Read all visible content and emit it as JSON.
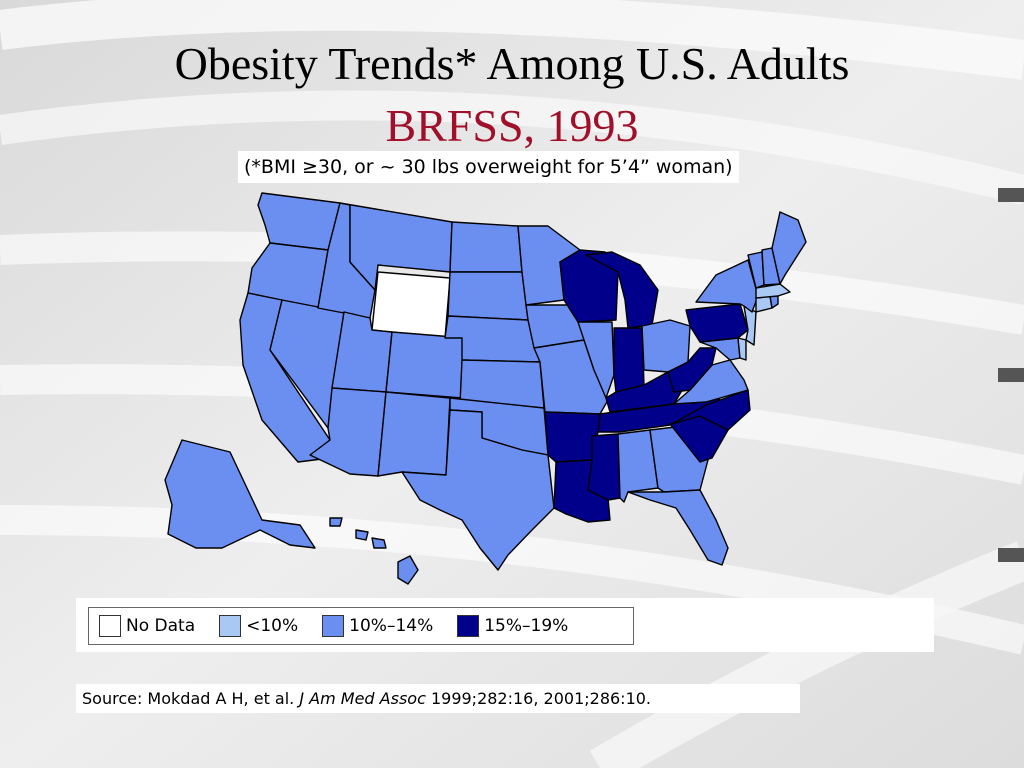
{
  "slide": {
    "title_line1": "Obesity Trends* Among U.S. Adults",
    "title_line2": "BRFSS, 1993",
    "footnote": "(*BMI ≥30, or ~ 30 lbs overweight for 5’4” woman)"
  },
  "legend": [
    {
      "label": "No Data",
      "color": "#ffffff"
    },
    {
      "label": "<10%",
      "color": "#a9c9f4"
    },
    {
      "label": "10%–14%",
      "color": "#6a8ff0"
    },
    {
      "label": "15%–19%",
      "color": "#00008a"
    }
  ],
  "source": {
    "prefix": "Source: Mokdad A H, et al. ",
    "journal": "J Am Med Assoc",
    "citation": " 1999;282:16, 2001;286:10."
  },
  "map": {
    "category_colors": {
      "no_data": "#ffffff",
      "lt10": "#a9c9f4",
      "10_14": "#6a8ff0",
      "15_19": "#00008a"
    },
    "states": {
      "WY": "no_data",
      "WI": "15_19",
      "MI": "15_19",
      "IN": "15_19",
      "KY": "15_19",
      "TN": "15_19",
      "WV": "15_19",
      "PA": "15_19",
      "NC": "15_19",
      "SC": "15_19",
      "AR": "15_19",
      "MS": "15_19",
      "LA": "15_19",
      "MA": "lt10",
      "CT": "lt10",
      "NJ": "lt10",
      "DE": "lt10",
      "WA": "10_14",
      "OR": "10_14",
      "CA": "10_14",
      "NV": "10_14",
      "ID": "10_14",
      "MT": "10_14",
      "UT": "10_14",
      "AZ": "10_14",
      "CO": "10_14",
      "NM": "10_14",
      "ND": "10_14",
      "SD": "10_14",
      "NE": "10_14",
      "KS": "10_14",
      "OK": "10_14",
      "TX": "10_14",
      "MN": "10_14",
      "IA": "10_14",
      "MO": "10_14",
      "IL": "10_14",
      "OH": "10_14",
      "AL": "10_14",
      "GA": "10_14",
      "FL": "10_14",
      "VA": "10_14",
      "MD": "10_14",
      "NY": "10_14",
      "VT": "10_14",
      "NH": "10_14",
      "ME": "10_14",
      "RI": "10_14",
      "AK": "10_14",
      "HI": "10_14"
    }
  }
}
